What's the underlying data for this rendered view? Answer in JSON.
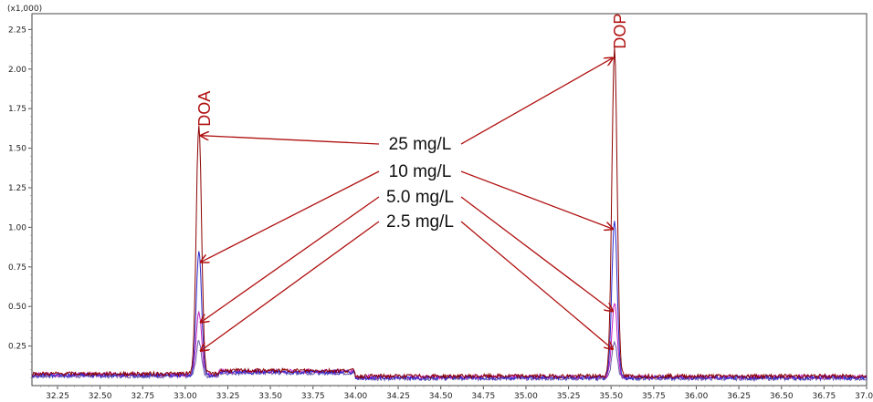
{
  "chart_data": {
    "type": "line",
    "scale_label": "(x1,000)",
    "xlim": [
      32.1,
      37.0
    ],
    "ylim": [
      0,
      2.35
    ],
    "x_ticks": [
      "32.25",
      "32.50",
      "32.75",
      "33.00",
      "33.25",
      "33.50",
      "33.75",
      "34.00",
      "34.25",
      "34.50",
      "34.75",
      "35.00",
      "35.25",
      "35.50",
      "35.75",
      "36.00",
      "36.25",
      "36.50",
      "36.75",
      "37.00"
    ],
    "y_ticks": [
      "0.25",
      "0.50",
      "0.75",
      "1.00",
      "1.25",
      "1.50",
      "1.75",
      "2.00",
      "2.25"
    ],
    "peaks": [
      {
        "name": "DOA",
        "x": 33.08
      },
      {
        "name": "DOP",
        "x": 35.52
      }
    ],
    "series": [
      {
        "name": "25 mg/L",
        "color": "#8b0000",
        "doa_height": 1.58,
        "dop_height": 2.07,
        "baseline": 0.075
      },
      {
        "name": "10 mg/L",
        "color": "#2a2ad0",
        "doa_height": 0.78,
        "dop_height": 0.99,
        "baseline": 0.065
      },
      {
        "name": "5.0 mg/L",
        "color": "#c020c0",
        "doa_height": 0.4,
        "dop_height": 0.47,
        "baseline": 0.07
      },
      {
        "name": "2.5 mg/L",
        "color": "#6a5aa8",
        "doa_height": 0.22,
        "dop_height": 0.23,
        "baseline": 0.06
      }
    ],
    "arrow_color": "#b01010"
  }
}
